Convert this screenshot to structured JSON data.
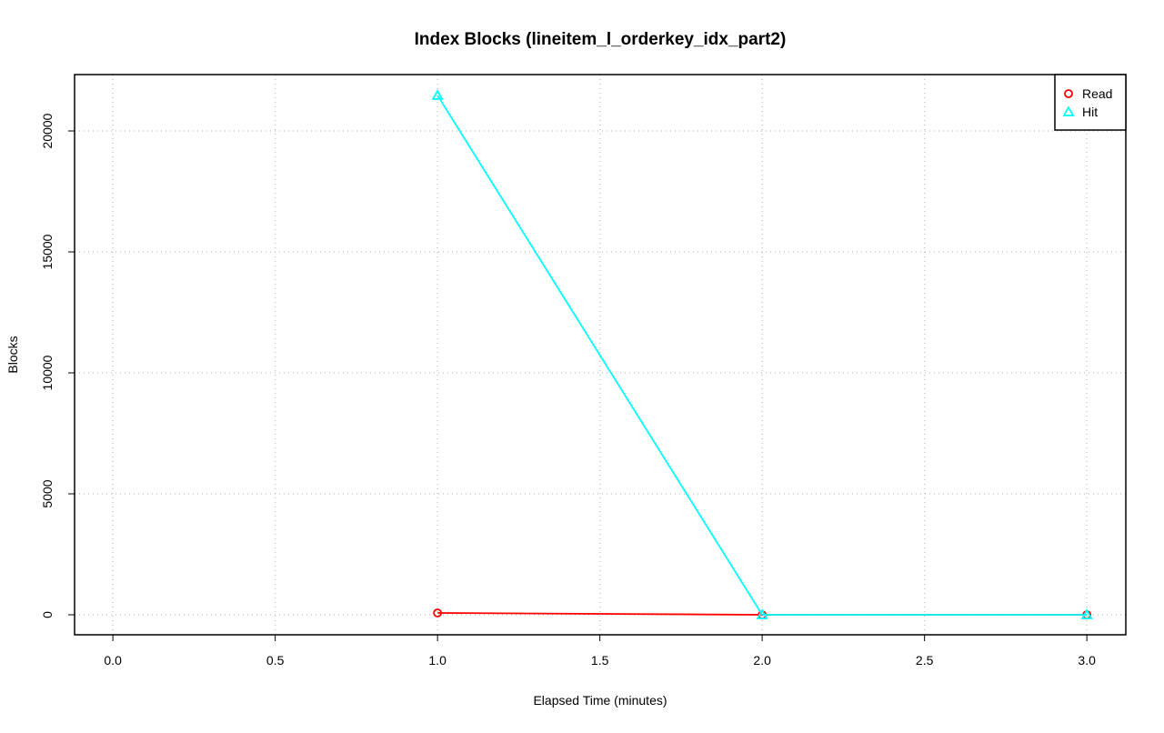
{
  "chart_data": {
    "type": "line",
    "title": "Index Blocks (lineitem_l_orderkey_idx_part2)",
    "xlabel": "Elapsed Time (minutes)",
    "ylabel": "Blocks",
    "x": [
      1,
      2,
      3
    ],
    "series": [
      {
        "name": "Read",
        "color": "#ff0000",
        "marker": "circle",
        "values": [
          75,
          0,
          0
        ]
      },
      {
        "name": "Hit",
        "color": "#00ffff",
        "marker": "triangle",
        "values": [
          21470,
          0,
          0
        ]
      }
    ],
    "xlim": [
      -0.118,
      3.12
    ],
    "ylim": [
      -827,
      22331
    ],
    "xticks": [
      {
        "value": 0,
        "label": "0.0"
      },
      0.5,
      {
        "value": 1,
        "label": "1.0"
      },
      1.5,
      {
        "value": 2,
        "label": "2.0"
      },
      2.5,
      {
        "value": 3,
        "label": "3.0"
      }
    ],
    "yticks": [
      0,
      5000,
      10000,
      15000,
      20000
    ],
    "grid": true,
    "legend": "top-right"
  }
}
